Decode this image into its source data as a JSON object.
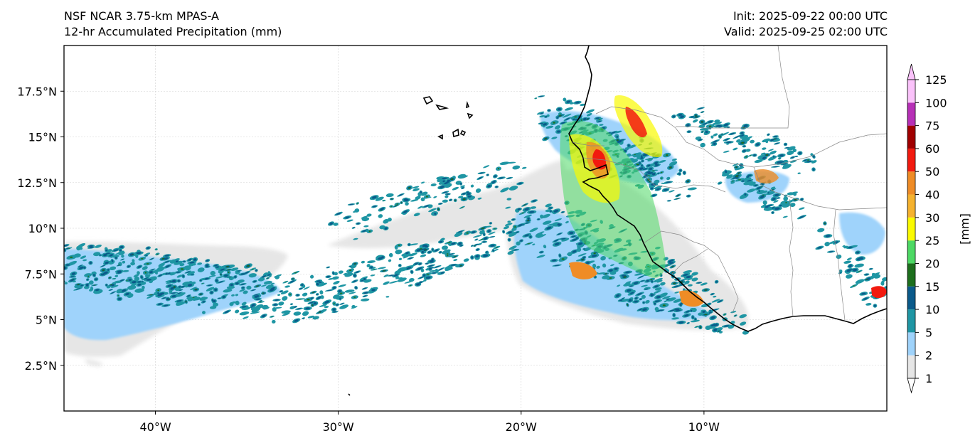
{
  "header": {
    "title": "NSF NCAR 3.75-km MPAS-A",
    "subtitle": "12-hr Accumulated Precipitation (mm)",
    "init": "Init: 2025-09-22 00:00 UTC",
    "valid": "Valid: 2025-09-25 02:00 UTC"
  },
  "map": {
    "lon_range": [
      -45,
      0
    ],
    "lat_range": [
      0,
      20
    ],
    "lat_ticks": [
      {
        "value": 17.5,
        "label": "17.5°N"
      },
      {
        "value": 15,
        "label": "15°N"
      },
      {
        "value": 12.5,
        "label": "12.5°N"
      },
      {
        "value": 10,
        "label": "10°N"
      },
      {
        "value": 7.5,
        "label": "7.5°N"
      },
      {
        "value": 5,
        "label": "5°N"
      },
      {
        "value": 2.5,
        "label": "2.5°N"
      }
    ],
    "lon_ticks": [
      {
        "value": -40,
        "label": "40°W"
      },
      {
        "value": -30,
        "label": "30°W"
      },
      {
        "value": -20,
        "label": "20°W"
      },
      {
        "value": -10,
        "label": "10°W"
      }
    ]
  },
  "colorbar": {
    "unit_label": "[mm]",
    "levels": [
      "1",
      "2",
      "5",
      "10",
      "15",
      "20",
      "25",
      "30",
      "40",
      "50",
      "60",
      "75",
      "100",
      "125"
    ],
    "colors": [
      "#e6e6e6",
      "#9fd3fb",
      "#1f96a4",
      "#0a5a8a",
      "#1d6f1d",
      "#4dd964",
      "#fafa00",
      "#f5b22e",
      "#ef8c26",
      "#f21a0f",
      "#a00000",
      "#b730b7",
      "#fac2fa"
    ],
    "extend_low_color": "#ffffff",
    "extend_high_color": "#fac2fa"
  }
}
